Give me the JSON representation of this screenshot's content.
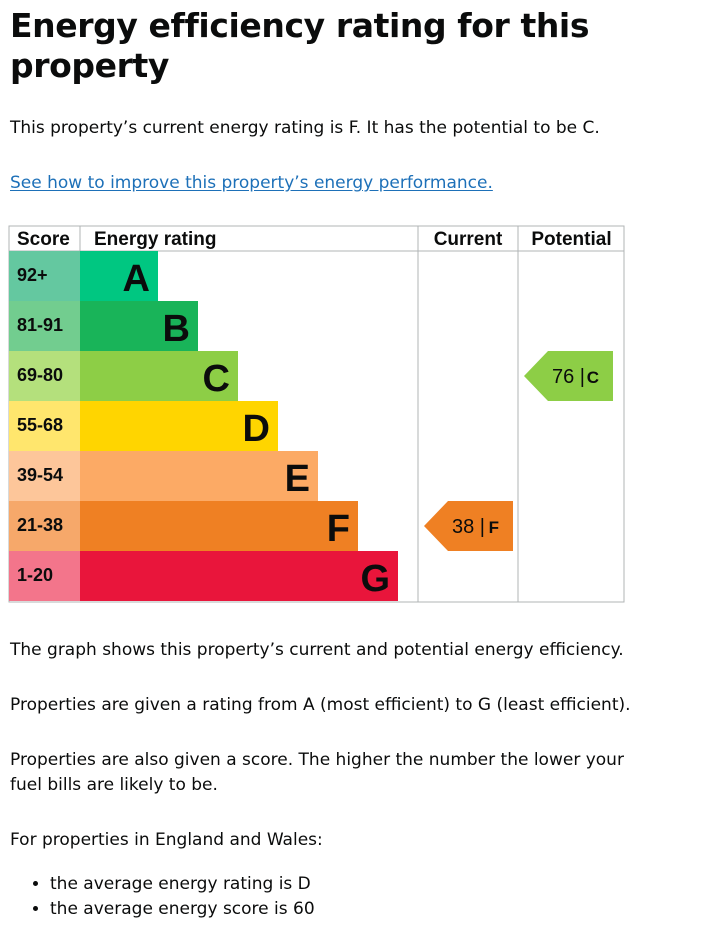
{
  "page": {
    "title": "Energy efficiency rating for this property",
    "summary": "This property’s current energy rating is F. It has the potential to be C.",
    "improve_link": "See how to improve this property’s energy performance.",
    "graph_note": "The graph shows this property’s current and potential energy efficiency.",
    "rating_note": "Properties are given a rating from A (most efficient) to G (least efficient).",
    "score_note": "Properties are also given a score. The higher the number the lower your fuel bills are likely to be.",
    "england_wales": "For properties in England and Wales:",
    "bullets": [
      "the average energy rating is D",
      "the average energy score is 60"
    ]
  },
  "chart_data": {
    "type": "bar",
    "headers": {
      "score": "Score",
      "rating": "Energy rating",
      "current": "Current",
      "potential": "Potential"
    },
    "bands": [
      {
        "rating": "A",
        "score": "92+",
        "bar_color": "#008054",
        "score_color": "#64c8a0"
      },
      {
        "rating": "B",
        "score": "81-91",
        "bar_color": "#19b459",
        "score_color": "#72cd8f"
      },
      {
        "rating": "C",
        "score": "69-80",
        "bar_color": "#8dce46",
        "score_color": "#b4e07c"
      },
      {
        "rating": "D",
        "score": "55-68",
        "bar_color": "#ffd500",
        "score_color": "#ffe66d"
      },
      {
        "rating": "E",
        "score": "39-54",
        "bar_color": "#fcaa65",
        "score_color": "#fdc69a"
      },
      {
        "rating": "F",
        "score": "21-38",
        "bar_color": "#ef8023",
        "score_color": "#f6a86a"
      },
      {
        "rating": "G",
        "score": "1-20",
        "bar_color": "#e9153b",
        "score_color": "#f3758b"
      }
    ],
    "current": {
      "score": 38,
      "rating": "F",
      "label": "38 |",
      "letter": "F"
    },
    "potential": {
      "score": 76,
      "rating": "C",
      "label": "76 |",
      "letter": "C"
    },
    "colors": {
      "A": "#00c781",
      "border": "#b1b4b6"
    }
  }
}
